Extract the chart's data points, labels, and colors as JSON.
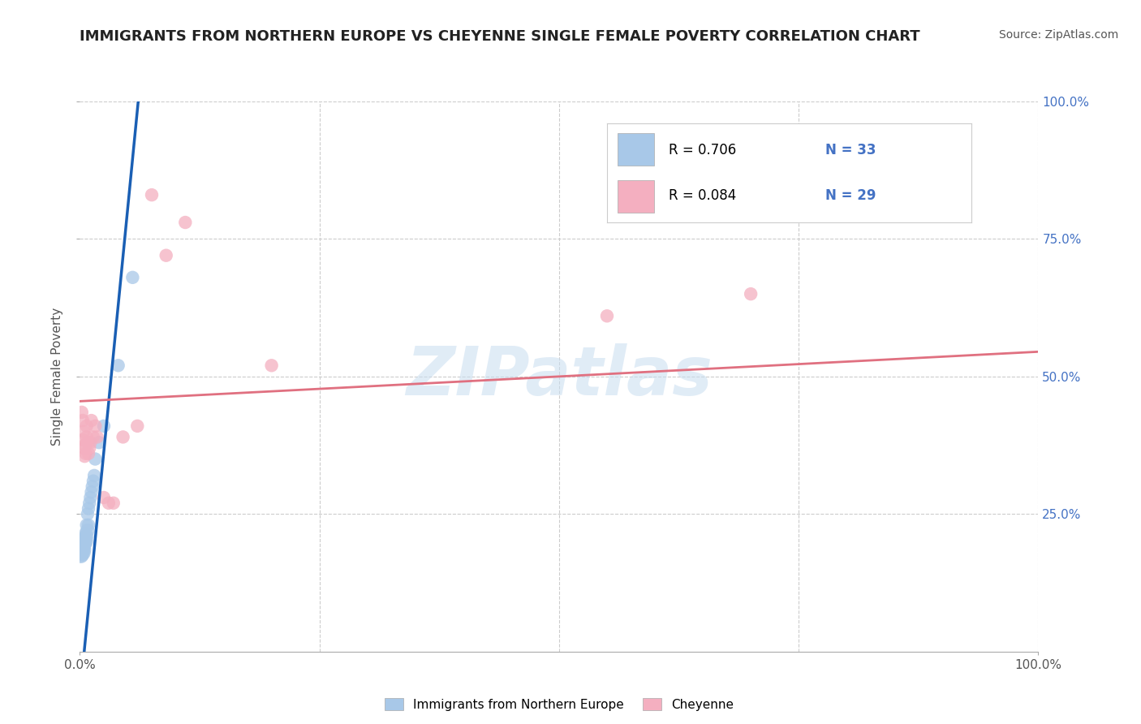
{
  "title": "IMMIGRANTS FROM NORTHERN EUROPE VS CHEYENNE SINGLE FEMALE POVERTY CORRELATION CHART",
  "source": "Source: ZipAtlas.com",
  "ylabel": "Single Female Poverty",
  "legend_label1": "Immigrants from Northern Europe",
  "legend_label2": "Cheyenne",
  "watermark": "ZIPatlas",
  "blue_color": "#a8c8e8",
  "pink_color": "#f4afc0",
  "blue_line_color": "#1a5fb4",
  "pink_line_color": "#e07080",
  "accent_color": "#4472c4",
  "blue_scatter_x": [
    0.001,
    0.002,
    0.002,
    0.003,
    0.003,
    0.003,
    0.004,
    0.004,
    0.004,
    0.004,
    0.005,
    0.005,
    0.005,
    0.006,
    0.006,
    0.006,
    0.007,
    0.007,
    0.008,
    0.008,
    0.009,
    0.009,
    0.01,
    0.011,
    0.012,
    0.013,
    0.014,
    0.015,
    0.016,
    0.02,
    0.025,
    0.04,
    0.055
  ],
  "blue_scatter_y": [
    0.175,
    0.175,
    0.18,
    0.18,
    0.185,
    0.195,
    0.185,
    0.19,
    0.195,
    0.2,
    0.195,
    0.2,
    0.21,
    0.2,
    0.205,
    0.215,
    0.21,
    0.23,
    0.22,
    0.25,
    0.23,
    0.26,
    0.27,
    0.28,
    0.29,
    0.3,
    0.31,
    0.32,
    0.35,
    0.38,
    0.41,
    0.52,
    0.68
  ],
  "blue_scatter_sizes": [
    200,
    150,
    180,
    200,
    160,
    140,
    180,
    160,
    140,
    200,
    160,
    140,
    120,
    180,
    160,
    140,
    160,
    140,
    160,
    140,
    140,
    140,
    140,
    140,
    140,
    140,
    140,
    140,
    140,
    140,
    140,
    140,
    140
  ],
  "pink_scatter_x": [
    0.002,
    0.003,
    0.003,
    0.004,
    0.004,
    0.005,
    0.005,
    0.006,
    0.007,
    0.007,
    0.008,
    0.009,
    0.01,
    0.011,
    0.012,
    0.014,
    0.016,
    0.018,
    0.025,
    0.03,
    0.035,
    0.045,
    0.06,
    0.075,
    0.09,
    0.11,
    0.2,
    0.55,
    0.7
  ],
  "pink_scatter_y": [
    0.435,
    0.385,
    0.42,
    0.37,
    0.4,
    0.355,
    0.375,
    0.36,
    0.39,
    0.41,
    0.38,
    0.36,
    0.37,
    0.38,
    0.42,
    0.39,
    0.41,
    0.39,
    0.28,
    0.27,
    0.27,
    0.39,
    0.41,
    0.83,
    0.72,
    0.78,
    0.52,
    0.61,
    0.65
  ],
  "pink_scatter_sizes": [
    140,
    140,
    140,
    140,
    140,
    140,
    140,
    140,
    140,
    140,
    140,
    140,
    140,
    140,
    140,
    140,
    140,
    140,
    140,
    140,
    140,
    140,
    140,
    140,
    140,
    140,
    140,
    140,
    140
  ],
  "blue_line_x": [
    0.0,
    0.062
  ],
  "blue_line_y": [
    -0.08,
    1.02
  ],
  "pink_line_x": [
    0.0,
    1.0
  ],
  "pink_line_y": [
    0.455,
    0.545
  ],
  "xlim": [
    0.0,
    1.0
  ],
  "ylim": [
    0.0,
    1.0
  ],
  "grid_color": "#cccccc",
  "background_color": "#ffffff",
  "title_color": "#222222",
  "source_color": "#555555"
}
